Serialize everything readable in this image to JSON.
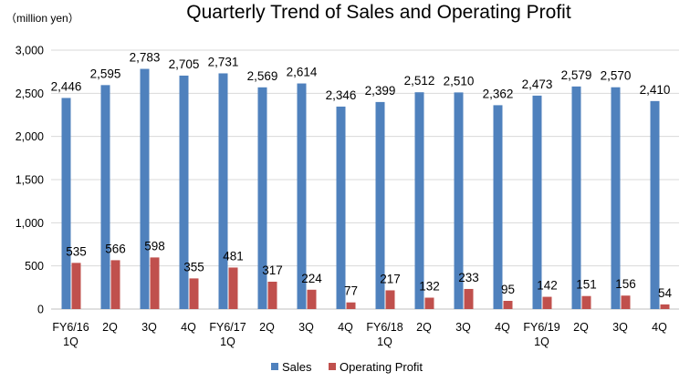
{
  "chart_data": {
    "type": "bar",
    "title": "Quarterly Trend of Sales and Operating Profit",
    "unit_label": "（million yen）",
    "categories": [
      [
        "FY6/16",
        "1Q"
      ],
      [
        "2Q"
      ],
      [
        "3Q"
      ],
      [
        "4Q"
      ],
      [
        "FY6/17",
        "1Q"
      ],
      [
        "2Q"
      ],
      [
        "3Q"
      ],
      [
        "4Q"
      ],
      [
        "FY6/18",
        "1Q"
      ],
      [
        "2Q"
      ],
      [
        "3Q"
      ],
      [
        "4Q"
      ],
      [
        "FY6/19",
        "1Q"
      ],
      [
        "2Q"
      ],
      [
        "3Q"
      ],
      [
        "4Q"
      ]
    ],
    "series": [
      {
        "name": "Sales",
        "color": "#4f81bd",
        "values": [
          2446,
          2595,
          2783,
          2705,
          2731,
          2569,
          2614,
          2346,
          2399,
          2512,
          2510,
          2362,
          2473,
          2579,
          2570,
          2410
        ]
      },
      {
        "name": "Operating Profit",
        "color": "#c0504d",
        "values": [
          535,
          566,
          598,
          355,
          481,
          317,
          224,
          77,
          217,
          132,
          233,
          95,
          142,
          151,
          156,
          54
        ]
      }
    ],
    "ylim": [
      0,
      3000
    ],
    "yticks": [
      0,
      500,
      1000,
      1500,
      2000,
      2500,
      3000
    ],
    "grid": true,
    "legend_position": "bottom"
  }
}
